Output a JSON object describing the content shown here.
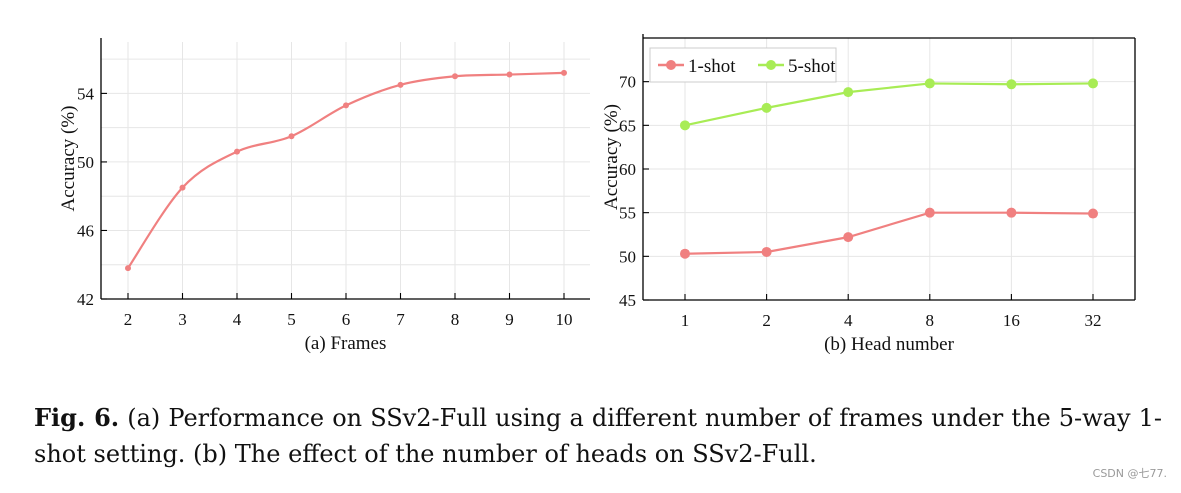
{
  "chart_data": [
    {
      "type": "line",
      "panel": "a",
      "xlabel": "(a) Frames",
      "ylabel": "Accuracy (%)",
      "categories": [
        "2",
        "3",
        "4",
        "5",
        "6",
        "7",
        "8",
        "9",
        "10"
      ],
      "yticks": [
        42,
        46,
        50,
        54
      ],
      "ylim": [
        42,
        57
      ],
      "grid": true,
      "series": [
        {
          "name": "1-shot",
          "color": "#f08080",
          "values": [
            43.8,
            48.5,
            50.6,
            51.5,
            53.3,
            54.5,
            55.0,
            55.1,
            55.2
          ]
        }
      ]
    },
    {
      "type": "line",
      "panel": "b",
      "xlabel": "(b) Head number",
      "ylabel": "Accuracy (%)",
      "categories": [
        "1",
        "2",
        "4",
        "8",
        "16",
        "32"
      ],
      "yticks": [
        45,
        50,
        55,
        60,
        65,
        70
      ],
      "ylim": [
        45,
        75
      ],
      "grid": true,
      "legend_position": "top-left",
      "series": [
        {
          "name": "1-shot",
          "color": "#f08080",
          "values": [
            50.3,
            50.5,
            52.2,
            55.0,
            55.0,
            54.9
          ]
        },
        {
          "name": "5-shot",
          "color": "#a8ec55",
          "values": [
            65.0,
            67.0,
            68.8,
            69.8,
            69.7,
            69.8
          ]
        }
      ]
    }
  ],
  "caption": {
    "label": "Fig. 6.",
    "text": " (a) Performance on SSv2-Full using a different number of frames under the 5-way 1-shot setting. (b) The effect of the number of heads on SSv2-Full."
  },
  "watermark": "CSDN @七77."
}
